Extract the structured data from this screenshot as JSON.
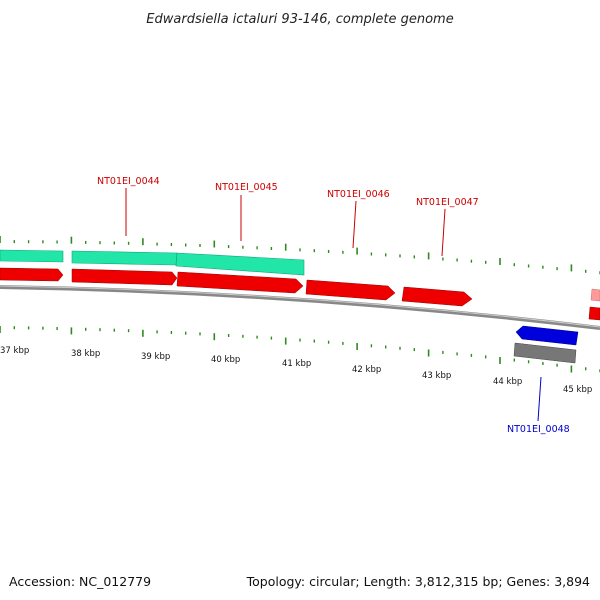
{
  "title": "Edwardsiella ictaluri 93-146, complete genome",
  "footer": {
    "accession": "Accession: NC_012779",
    "summary": "Topology: circular; Length: 3,812,315 bp; Genes: 3,894"
  },
  "colors": {
    "forward_cds": "#ee0000",
    "forward_highlight": "#ff9a9a",
    "forward_gene": "#22e5a8",
    "reverse_cds": "#0000dd",
    "reverse_gene": "#777777",
    "backbone": "#888888",
    "tick": "#2e8b1e",
    "label_forward": "#cc0000",
    "label_reverse": "#0000cc"
  },
  "scale_labels": [
    "37 kbp",
    "38 kbp",
    "39 kbp",
    "40 kbp",
    "41 kbp",
    "42 kbp",
    "43 kbp",
    "44 kbp",
    "45 kbp"
  ],
  "gene_labels": [
    {
      "text": "NT01EI_0044",
      "strand": "forward"
    },
    {
      "text": "NT01EI_0045",
      "strand": "forward"
    },
    {
      "text": "NT01EI_0046",
      "strand": "forward"
    },
    {
      "text": "NT01EI_0047",
      "strand": "forward"
    },
    {
      "text": "NT01EI_0048",
      "strand": "reverse"
    }
  ]
}
